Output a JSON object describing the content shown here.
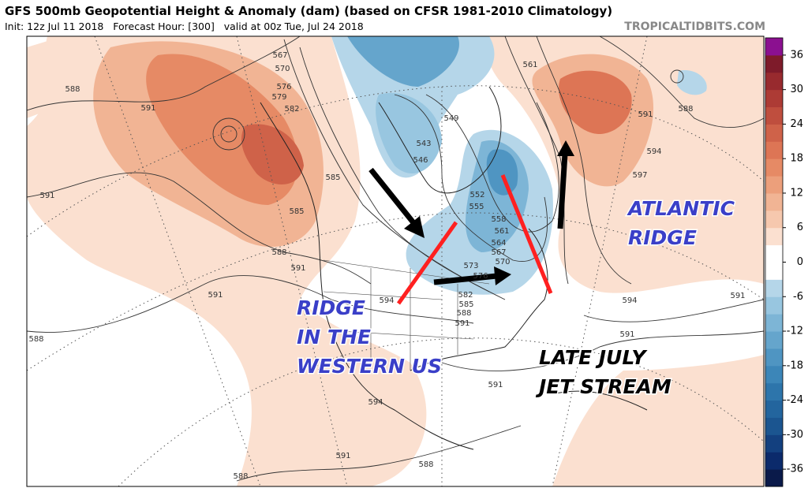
{
  "header": {
    "title": "GFS 500mb Geopotential Height & Anomaly (dam) (based on CFSR 1981-2010 Climatology)",
    "subtitle": "Init: 12z Jul 11 2018   Forecast Hour: [300]   valid at 00z Tue, Jul 24 2018",
    "source": "TROPICALTIDBITS.COM"
  },
  "colorbar": {
    "lim": [
      -39,
      39
    ],
    "ticks": [
      36,
      30,
      24,
      18,
      12,
      6,
      0,
      -6,
      -12,
      -18,
      -24,
      -30,
      -36
    ],
    "colors": [
      "#0a1a4a",
      "#0b2a6b",
      "#13407f",
      "#1b5590",
      "#23659e",
      "#2d75ab",
      "#3c86b8",
      "#4f95c2",
      "#65a5cc",
      "#7db5d6",
      "#98c6e0",
      "#b5d6e9",
      "#ffffff",
      "#ffffff",
      "#fbe0d0",
      "#f6c8ae",
      "#f1b494",
      "#ec9f7b",
      "#e68a65",
      "#dd7555",
      "#cf6249",
      "#bf4e3e",
      "#ad3b35",
      "#982a2e",
      "#7e1b2a",
      "#8b1090"
    ]
  },
  "contour_labels": [
    "567",
    "570",
    "576",
    "579",
    "582",
    "585",
    "585",
    "588",
    "591",
    "591",
    "588",
    "591",
    "594",
    "591",
    "588",
    "594",
    "591",
    "588",
    "588",
    "591",
    "591",
    "594",
    "591",
    "597",
    "594",
    "591",
    "588",
    "561",
    "549",
    "543",
    "546",
    "552",
    "555",
    "558",
    "561",
    "564",
    "567",
    "570",
    "573",
    "576",
    "582",
    "585",
    "588",
    "591"
  ],
  "annotations": {
    "western_ridge": [
      "RIDGE",
      "IN THE",
      "WESTERN US"
    ],
    "atlantic_ridge": [
      "ATLANTIC",
      "RIDGE"
    ],
    "jet_stream": [
      "LATE JULY",
      "JET STREAM"
    ]
  }
}
